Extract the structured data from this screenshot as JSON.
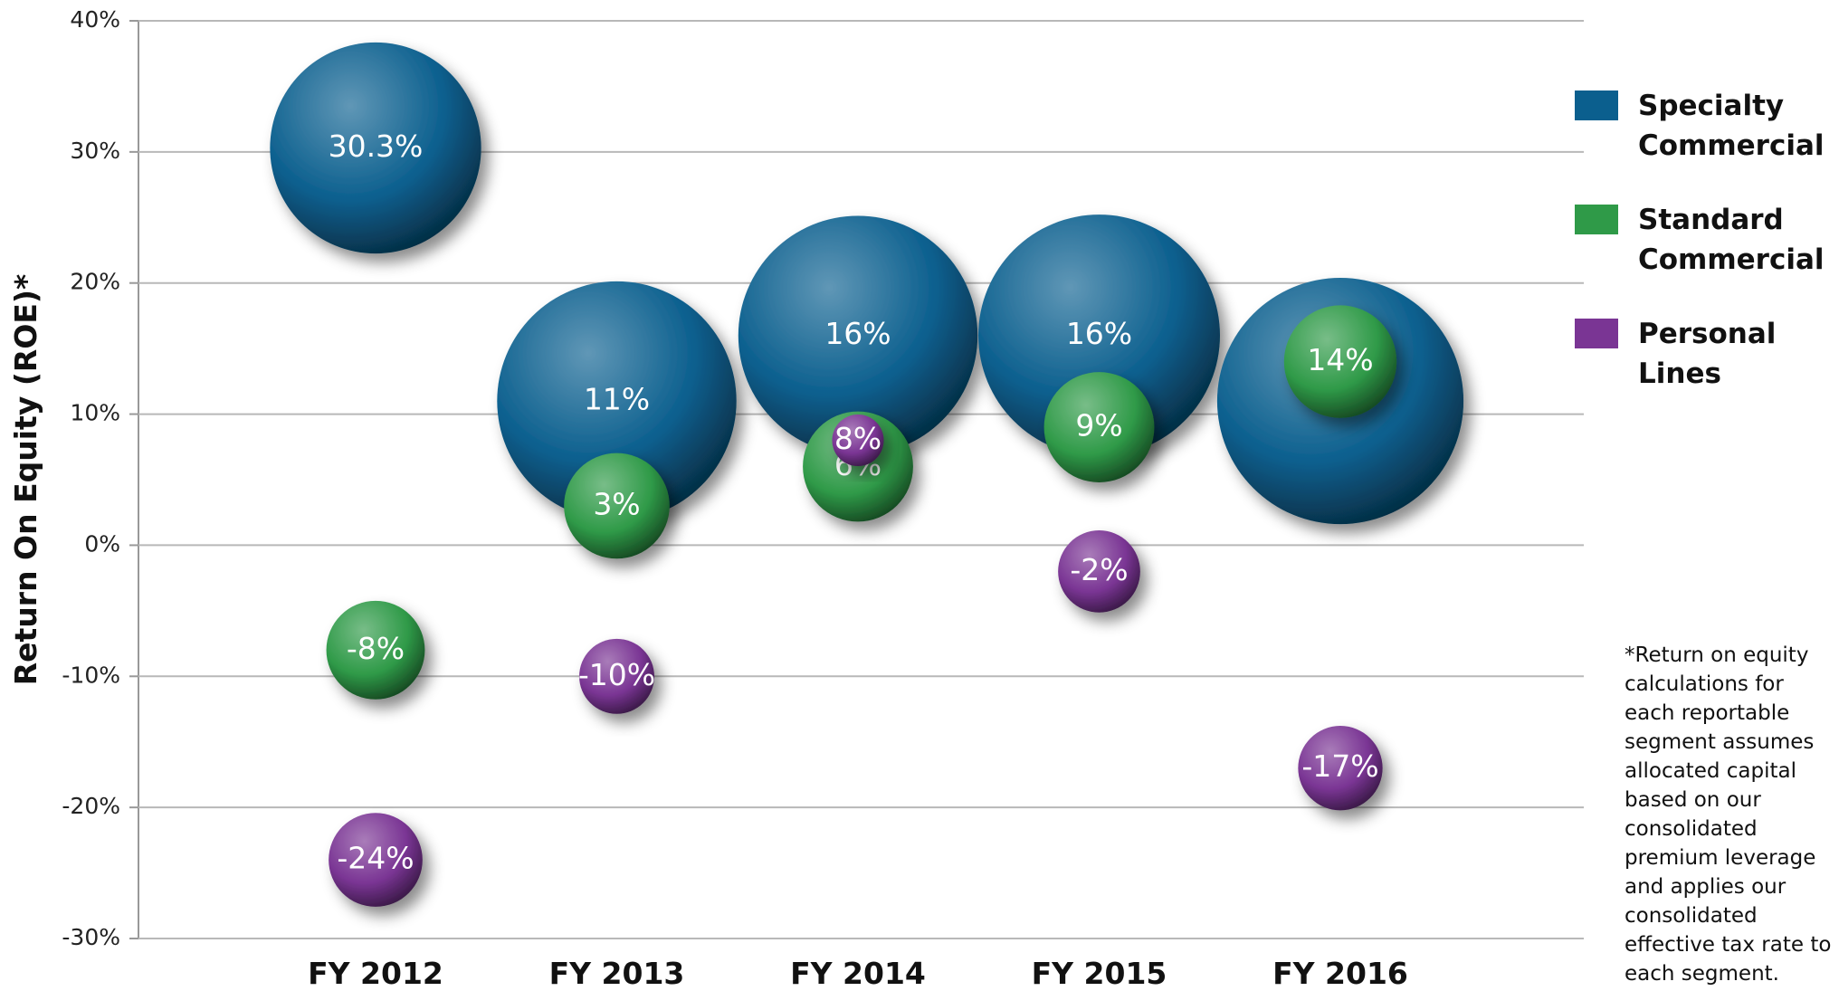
{
  "chart_data": {
    "type": "bubble",
    "y_label": "Return On Equity (ROE)*",
    "annotation": "*Return on equity calculations for each reportable segment assumes allocated capital based on our consolidated premium leverage and applies our consolidated effective tax rate to each segment.",
    "categories": [
      "FY 2012",
      "FY 2013",
      "FY 2014",
      "FY 2015",
      "FY 2016"
    ],
    "ylim": [
      -30,
      40
    ],
    "yticks": [
      {
        "value": 40,
        "label": "40%"
      },
      {
        "value": 30,
        "label": "30%"
      },
      {
        "value": 20,
        "label": "20%"
      },
      {
        "value": 10,
        "label": "10%"
      },
      {
        "value": 0,
        "label": "0%"
      },
      {
        "value": -10,
        "label": "-10%"
      },
      {
        "value": -20,
        "label": "-20%"
      },
      {
        "value": -30,
        "label": "-30%"
      }
    ],
    "grid": true,
    "legend": "right",
    "series": [
      {
        "name": "Specialty Commercial",
        "color": "#0b5f8e",
        "values": [
          30.3,
          11,
          16,
          16,
          11
        ],
        "value_labels": [
          "30.3%",
          "11%",
          "16%",
          "16%",
          "11%"
        ],
        "sizes": [
          90,
          102,
          102,
          103,
          105
        ]
      },
      {
        "name": "Standard Commercial",
        "color": "#2f9a48",
        "values": [
          -8,
          3,
          6,
          9,
          14
        ],
        "value_labels": [
          "-8%",
          "3%",
          "6%",
          "9%",
          "14%"
        ],
        "sizes": [
          42,
          45,
          47,
          47,
          48
        ]
      },
      {
        "name": "Personal Lines",
        "color": "#7a3594",
        "values": [
          -24,
          -10,
          8,
          -2,
          -17
        ],
        "value_labels": [
          "-24%",
          "-10%",
          "8%",
          "-2%",
          "-17%"
        ],
        "sizes": [
          40,
          32,
          22,
          35,
          36
        ]
      }
    ]
  }
}
